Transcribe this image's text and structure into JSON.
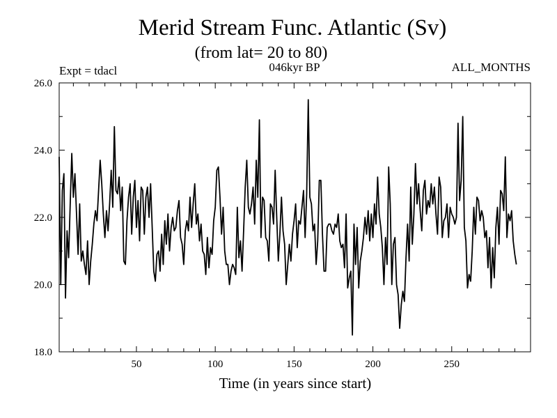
{
  "chart_data": {
    "type": "line",
    "title": "Merid Stream Func. Atlantic (Sv)",
    "subtitle": "(from lat= 20 to 80)",
    "expt_label": "Expt = tdacl",
    "center_label": "046kyr BP",
    "right_label": "ALL_MONTHS",
    "xlabel": "Time (in years since start)",
    "ylabel": "",
    "xlim": [
      1,
      300
    ],
    "ylim": [
      18,
      26
    ],
    "x_ticks": [
      50,
      100,
      150,
      200,
      250
    ],
    "x_tick_labels": [
      "50",
      "100",
      "150",
      "200",
      "250"
    ],
    "y_ticks": [
      18,
      20,
      22,
      24,
      26
    ],
    "y_tick_labels": [
      "18.0",
      "20.0",
      "22.0",
      "24.0",
      "26.0"
    ],
    "series": [
      {
        "name": "Merid Stream Func",
        "color": "#000000",
        "x_start": 1,
        "x_step": 1,
        "values": [
          23.8,
          20.0,
          22.8,
          23.3,
          19.6,
          21.6,
          20.8,
          22.4,
          23.9,
          22.6,
          23.3,
          22.1,
          20.9,
          22.4,
          20.7,
          21.0,
          20.6,
          20.3,
          21.3,
          20.0,
          20.7,
          21.2,
          21.8,
          22.2,
          21.9,
          22.8,
          23.7,
          23.0,
          22.1,
          21.4,
          22.2,
          21.6,
          22.4,
          23.4,
          22.3,
          24.7,
          22.8,
          22.7,
          23.2,
          22.2,
          22.9,
          20.7,
          20.6,
          21.9,
          22.6,
          23.0,
          21.5,
          22.6,
          23.1,
          21.7,
          22.5,
          21.3,
          22.9,
          22.8,
          21.5,
          22.6,
          22.9,
          22.0,
          23.0,
          21.7,
          20.4,
          20.1,
          20.9,
          21.0,
          20.4,
          21.5,
          20.6,
          21.9,
          21.2,
          22.1,
          21.0,
          21.7,
          22.0,
          21.6,
          21.7,
          22.2,
          22.5,
          21.4,
          21.2,
          20.6,
          21.6,
          21.9,
          21.6,
          22.6,
          21.7,
          22.4,
          23.0,
          21.8,
          22.1,
          21.3,
          21.8,
          21.0,
          20.9,
          20.3,
          21.4,
          20.5,
          21.1,
          20.9,
          21.9,
          22.3,
          23.4,
          23.5,
          22.6,
          21.5,
          22.3,
          21.0,
          20.6,
          20.6,
          20.0,
          20.4,
          20.6,
          20.5,
          20.3,
          22.3,
          20.8,
          21.3,
          20.4,
          21.6,
          22.9,
          23.7,
          22.3,
          22.1,
          22.4,
          22.9,
          21.8,
          23.7,
          22.6,
          24.9,
          21.4,
          22.6,
          22.5,
          21.4,
          21.3,
          20.7,
          22.4,
          22.3,
          21.8,
          23.4,
          22.0,
          20.7,
          21.5,
          22.6,
          21.6,
          21.2,
          20.0,
          20.6,
          21.2,
          20.7,
          21.5,
          21.9,
          22.4,
          21.1,
          21.9,
          21.8,
          22.3,
          22.8,
          21.4,
          22.7,
          25.5,
          22.6,
          22.4,
          21.6,
          21.8,
          20.6,
          21.3,
          23.1,
          23.1,
          21.5,
          20.4,
          20.4,
          21.7,
          21.8,
          21.8,
          21.6,
          21.5,
          21.8,
          21.7,
          22.1,
          21.3,
          21.1,
          21.2,
          20.5,
          22.1,
          19.9,
          20.2,
          20.4,
          18.5,
          21.8,
          20.6,
          21.7,
          19.9,
          20.7,
          21.0,
          21.4,
          22.0,
          21.5,
          22.2,
          21.3,
          22.1,
          21.4,
          22.4,
          21.8,
          23.2,
          22.1,
          21.7,
          21.1,
          20.0,
          21.4,
          20.6,
          23.5,
          22.4,
          20.0,
          21.2,
          21.4,
          20.0,
          19.7,
          18.7,
          19.4,
          19.8,
          19.5,
          20.8,
          21.8,
          20.7,
          22.9,
          21.2,
          22.1,
          23.6,
          22.4,
          23.0,
          22.2,
          21.6,
          22.8,
          23.1,
          22.1,
          22.5,
          22.3,
          23.0,
          22.4,
          22.9,
          22.1,
          21.5,
          23.2,
          22.9,
          21.4,
          21.9,
          22.0,
          22.4,
          21.4,
          22.3,
          22.1,
          22.0,
          21.8,
          22.0,
          24.8,
          22.5,
          23.1,
          25.0,
          21.7,
          21.3,
          19.9,
          20.3,
          20.1,
          21.0,
          22.3,
          21.5,
          22.6,
          22.5,
          21.9,
          22.2,
          22.0,
          21.4,
          21.6,
          20.5,
          21.4,
          19.9,
          21.1,
          20.2,
          21.7,
          22.3,
          21.2,
          22.8,
          22.7,
          22.2,
          23.8,
          21.4,
          22.1,
          21.9,
          22.2,
          21.3,
          20.9,
          20.6
        ]
      }
    ]
  }
}
